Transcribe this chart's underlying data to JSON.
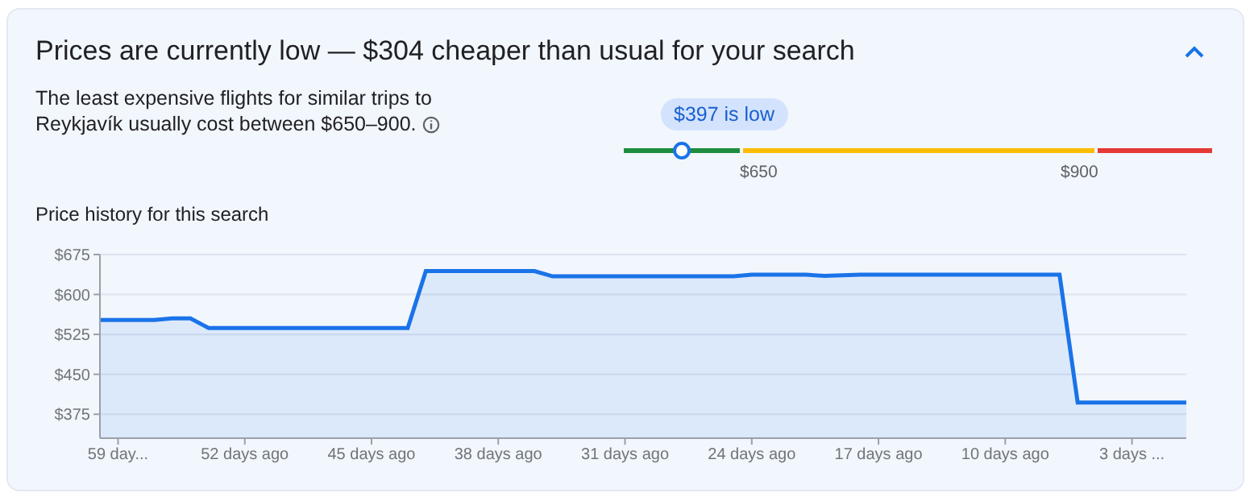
{
  "chart_data": {
    "type": "area",
    "title": "Prices are currently low — $304 cheaper than usual for your search",
    "annotations": [
      "The least expensive flights for similar trips to Reykjavík usually cost between $650–900.",
      "$397 is low",
      "$650",
      "$900",
      "Price history for this search"
    ],
    "x": [
      -60,
      -57,
      -56,
      -55,
      -54,
      -43,
      -42,
      -36,
      -35,
      -25,
      -24,
      -21,
      -20,
      -18,
      -7,
      -6,
      0
    ],
    "series": [
      {
        "color": "#1a73e8",
        "values": [
          552,
          552,
          555,
          555,
          537,
          537,
          644,
          644,
          634,
          634,
          637,
          637,
          635,
          637,
          637,
          397,
          397
        ]
      }
    ],
    "xlim": [
      -60,
      0
    ],
    "xticks": [
      {
        "value": -59,
        "label": "59 day..."
      },
      {
        "value": -52,
        "label": "52 days ago"
      },
      {
        "value": -45,
        "label": "45 days ago"
      },
      {
        "value": -38,
        "label": "38 days ago"
      },
      {
        "value": -31,
        "label": "31 days ago"
      },
      {
        "value": -24,
        "label": "24 days ago"
      },
      {
        "value": -17,
        "label": "17 days ago"
      },
      {
        "value": -10,
        "label": "10 days ago"
      },
      {
        "value": -3,
        "label": "3 days ..."
      }
    ],
    "ylim": [
      330,
      675
    ],
    "yticks": [
      {
        "value": 375,
        "label": "$375"
      },
      {
        "value": 450,
        "label": "$450"
      },
      {
        "value": 525,
        "label": "$525"
      },
      {
        "value": 600,
        "label": "$600"
      },
      {
        "value": 675,
        "label": "$675"
      }
    ],
    "grid": "y"
  }
}
